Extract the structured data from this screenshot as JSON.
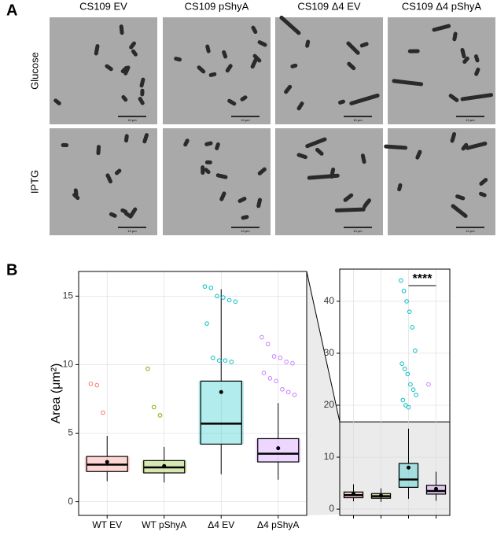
{
  "panels": {
    "a": {
      "label": "A",
      "columns": [
        "CS109 EV",
        "CS109 pShyA",
        "CS109 Δ4 EV",
        "CS109 Δ4 pShyA"
      ],
      "rows": [
        "Glucose",
        "IPTG"
      ],
      "scale_bar": "10 μm"
    },
    "b": {
      "label": "B"
    }
  },
  "chart_data": [
    {
      "type": "box",
      "ylabel": "Area (μm²)",
      "categories": [
        "WT EV",
        "WT pShyA",
        "Δ4 EV",
        "Δ4 pShyA"
      ],
      "colors": [
        "#f8766d",
        "#7cae00",
        "#00bfc4",
        "#c77cff"
      ],
      "ylim": [
        -1,
        16.8
      ],
      "yticks": [
        0,
        5,
        10,
        15
      ],
      "grid": true,
      "boxes": [
        {
          "whisker_low": 1.5,
          "q1": 2.2,
          "median": 2.7,
          "q3": 3.3,
          "whisker_high": 4.8,
          "mean": 2.9,
          "outliers": [
            8.6,
            8.5,
            6.5
          ]
        },
        {
          "whisker_low": 1.4,
          "q1": 2.1,
          "median": 2.5,
          "q3": 3.0,
          "whisker_high": 4.0,
          "mean": 2.6,
          "outliers": [
            9.7,
            6.9,
            6.3
          ]
        },
        {
          "whisker_low": 2.0,
          "q1": 4.2,
          "median": 5.7,
          "q3": 8.8,
          "whisker_high": 15.5,
          "mean": 8.0,
          "outliers": [
            15.7,
            15.6,
            15.0,
            14.9,
            14.7,
            14.6,
            13.0,
            10.5,
            10.3,
            10.3,
            10.2
          ]
        },
        {
          "whisker_low": 1.6,
          "q1": 2.9,
          "median": 3.5,
          "q3": 4.6,
          "whisker_high": 7.2,
          "mean": 3.9,
          "outliers": [
            12.0,
            11.5,
            10.6,
            10.5,
            10.2,
            10.1,
            9.4,
            9.0,
            8.8,
            8.2,
            8.0,
            7.8
          ]
        }
      ]
    },
    {
      "type": "box",
      "annotation": "****",
      "colors": [
        "#f8766d",
        "#7cae00",
        "#00bfc4",
        "#c77cff"
      ],
      "ylim": [
        -1.2,
        46.2
      ],
      "yticks": [
        0,
        10,
        20,
        30,
        40
      ],
      "grid": true,
      "boxes": [
        {
          "whisker_low": 1.5,
          "q1": 2.2,
          "median": 2.7,
          "q3": 3.3,
          "whisker_high": 4.8,
          "mean": 2.9,
          "outliers": []
        },
        {
          "whisker_low": 1.4,
          "q1": 2.1,
          "median": 2.5,
          "q3": 3.0,
          "whisker_high": 4.0,
          "mean": 2.6,
          "outliers": []
        },
        {
          "whisker_low": 2.0,
          "q1": 4.2,
          "median": 5.7,
          "q3": 8.8,
          "whisker_high": 15.5,
          "mean": 8.0,
          "outliers": [
            44,
            42,
            40,
            38,
            35,
            30.5,
            28,
            27,
            26,
            24,
            23,
            22,
            21,
            20,
            19.6
          ]
        },
        {
          "whisker_low": 1.6,
          "q1": 2.9,
          "median": 3.5,
          "q3": 4.6,
          "whisker_high": 7.2,
          "mean": 3.9,
          "outliers": [
            24
          ]
        }
      ]
    }
  ]
}
